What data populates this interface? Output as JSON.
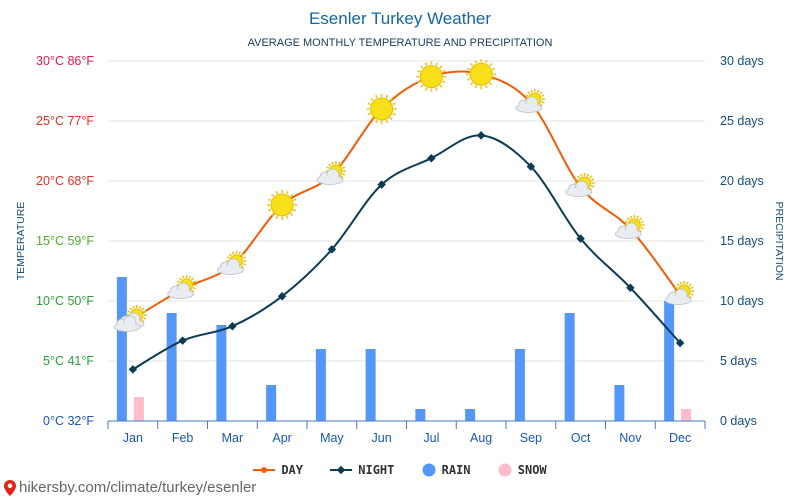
{
  "colors": {
    "title": "#1565a8",
    "day": "#f25c05",
    "night": "#0c3b54",
    "rain": "#5597f9",
    "snow": "#ffbcc9",
    "right_axis": "#164e7a",
    "grid": "#e4e4e4",
    "axis_line": "#4a78c0",
    "temp_axis": [
      "#1a56b5",
      "#2e9e3e",
      "#2e9e3e",
      "#4fae2f",
      "#e0301e",
      "#e0301e",
      "#e8164f"
    ]
  },
  "chart_data": {
    "type": "line",
    "title": "Esenler Turkey Weather",
    "subtitle": "AVERAGE MONTHLY TEMPERATURE AND PRECIPITATION",
    "ylabel_left": "TEMPERATURE",
    "ylabel_right": "PRECIPITATION",
    "categories": [
      "Jan",
      "Feb",
      "Mar",
      "Apr",
      "May",
      "Jun",
      "Jul",
      "Aug",
      "Sep",
      "Oct",
      "Nov",
      "Dec"
    ],
    "left_ticks": [
      "0°C 32°F",
      "5°C 41°F",
      "10°C 50°F",
      "15°C 59°F",
      "20°C 68°F",
      "25°C 77°F",
      "30°C 86°F"
    ],
    "right_ticks": [
      "0 days",
      "5 days",
      "10 days",
      "15 days",
      "20 days",
      "25 days",
      "30 days"
    ],
    "ylim_left": [
      0,
      30
    ],
    "ylim_right": [
      0,
      30
    ],
    "grid": true,
    "legend_position": "bottom",
    "series": [
      {
        "name": "DAY",
        "type": "line",
        "axis": "left",
        "values": [
          8.5,
          11,
          13,
          18,
          20.5,
          26,
          28.7,
          28.9,
          26.5,
          19.5,
          16,
          10.5
        ]
      },
      {
        "name": "NIGHT",
        "type": "line",
        "axis": "left",
        "values": [
          4.3,
          6.7,
          7.9,
          10.4,
          14.3,
          19.7,
          21.9,
          23.8,
          21.2,
          15.2,
          11.1,
          6.5
        ]
      },
      {
        "name": "RAIN",
        "type": "bar",
        "axis": "right",
        "values": [
          12,
          9,
          8,
          3,
          6,
          6,
          1,
          1,
          6,
          9,
          3,
          10
        ]
      },
      {
        "name": "SNOW",
        "type": "bar",
        "axis": "right",
        "values": [
          2,
          0,
          0,
          0,
          0,
          0,
          0,
          0,
          0,
          0,
          0,
          1
        ]
      }
    ],
    "weather_icons": [
      "partly-cloudy-icon",
      "partly-cloudy-icon",
      "partly-cloudy-icon",
      "sun-icon",
      "partly-cloudy-icon",
      "sun-icon",
      "sun-icon",
      "sun-icon",
      "partly-cloudy-icon",
      "partly-cloudy-icon",
      "partly-cloudy-icon",
      "partly-cloudy-icon"
    ]
  },
  "legend": {
    "day": "DAY",
    "night": "NIGHT",
    "rain": "RAIN",
    "snow": "SNOW"
  },
  "footer": {
    "text": "hikersby.com/climate/turkey/esenler",
    "icon": "map-pin-icon"
  }
}
